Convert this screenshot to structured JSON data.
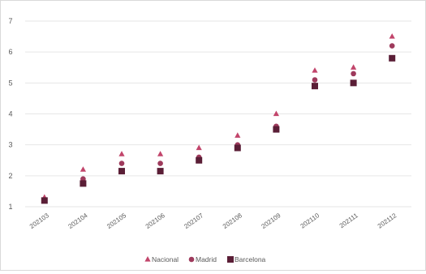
{
  "chart_data": {
    "type": "scatter",
    "title": "",
    "xlabel": "",
    "ylabel": "",
    "categories": [
      "202103",
      "202104",
      "202105",
      "202106",
      "202107",
      "202108",
      "202109",
      "202110",
      "202111",
      "202112"
    ],
    "ylim": [
      1,
      7
    ],
    "yticks": [
      1,
      2,
      3,
      4,
      5,
      6,
      7
    ],
    "grid": "horizontal",
    "legend_position": "bottom",
    "series": [
      {
        "name": "Nacional",
        "marker": "triangle",
        "color": "#c2456b",
        "values": [
          1.3,
          2.2,
          2.7,
          2.7,
          2.9,
          3.3,
          4.0,
          5.4,
          5.5,
          6.5
        ]
      },
      {
        "name": "Madrid",
        "marker": "circle",
        "color": "#9e3a5c",
        "values": [
          1.2,
          1.9,
          2.4,
          2.4,
          2.6,
          3.0,
          3.6,
          5.1,
          5.3,
          6.2
        ]
      },
      {
        "name": "Barcelona",
        "marker": "square",
        "color": "#5a1e36",
        "values": [
          1.2,
          1.75,
          2.15,
          2.15,
          2.5,
          2.9,
          3.5,
          4.9,
          5.0,
          5.8
        ]
      }
    ]
  }
}
